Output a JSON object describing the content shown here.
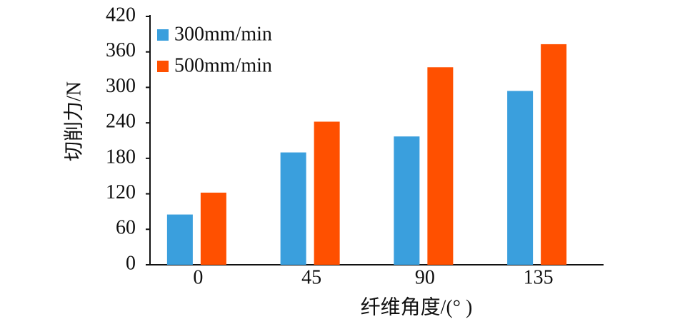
{
  "chart_data": {
    "type": "bar",
    "x_label": "纤维角度/(°  )",
    "y_label": "切削力/N",
    "categories": [
      "0",
      "45",
      "90",
      "135"
    ],
    "series": [
      {
        "name": "300mm/min",
        "color": "#3a9fdd",
        "values": [
          85,
          190,
          217,
          294
        ]
      },
      {
        "name": "500mm/min",
        "color": "#ff5000",
        "values": [
          122,
          242,
          334,
          373
        ]
      }
    ],
    "ylim": [
      0,
      420
    ],
    "yticks": [
      0,
      60,
      120,
      180,
      240,
      300,
      360,
      420
    ],
    "legend": "upper left"
  }
}
